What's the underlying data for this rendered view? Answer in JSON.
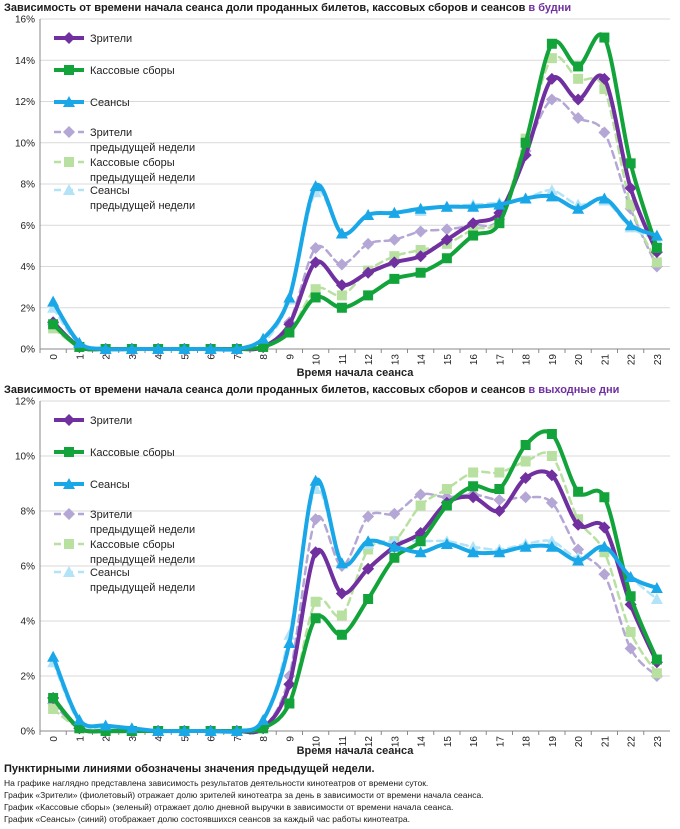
{
  "charts_text": [
    {
      "title_main": "Зависимость от времени начала сеанса доли проданных билетов, кассовых сборов и сеансов ",
      "title_highlight": "в будни"
    },
    {
      "title_main": "Зависимость от времени начала сеанса доли проданных билетов, кассовых сборов и сеансов ",
      "title_highlight": "в выходные дни"
    }
  ],
  "notes": {
    "heading": "Пунктирными линиями обозначены значения предыдущей недели.",
    "lines": [
      "На графике наглядно представлена зависимость результатов деятельности кинотеатров от времени суток.",
      "График «Зрители» (фиолетовый) отражает долю зрителей кинотеатра за день в зависимости от времени начала сеанса.",
      "График «Кассовые сборы» (зеленый) отражает долю дневной выручки в зависимости от времени начала сеанса.",
      "График «Сеансы» (синий) отображает долю состоявшихся сеансов за каждый час работы кинотеатра."
    ]
  },
  "colors": {
    "viewers": "#7030a0",
    "box": "#12a33a",
    "sessions": "#1aa7e8",
    "viewers_prev": "#b4a7d6",
    "box_prev": "#b8e0a0",
    "sessions_prev": "#b3e3f7",
    "grid": "#d9d9d9",
    "highlight": "#7030a0"
  },
  "chart_data": [
    {
      "type": "line",
      "title": "Зависимость от времени начала сеанса доли проданных билетов, кассовых сборов и сеансов в будни",
      "xlabel": "Время начала сеанса",
      "ylabel": "",
      "ylim": [
        0,
        16
      ],
      "ytick_labels": [
        "0%",
        "2%",
        "4%",
        "6%",
        "8%",
        "10%",
        "12%",
        "14%",
        "16%"
      ],
      "x": [
        "0",
        "1",
        "2",
        "3",
        "4",
        "5",
        "6",
        "7",
        "8",
        "9",
        "10",
        "11",
        "12",
        "13",
        "14",
        "15",
        "16",
        "17",
        "18",
        "19",
        "20",
        "21",
        "22",
        "23"
      ],
      "legend_position": "top-left",
      "series": [
        {
          "key": "viewers_prev",
          "name": "Зрители предыдущей недели",
          "dashed": true,
          "marker": "diamond",
          "values": [
            1.2,
            0.1,
            0,
            0,
            0,
            0,
            0,
            0,
            0.1,
            1.3,
            4.9,
            4.1,
            5.1,
            5.3,
            5.7,
            5.8,
            6.0,
            6.3,
            9.6,
            12.1,
            11.2,
            10.5,
            6.8,
            4.0
          ]
        },
        {
          "key": "box_prev",
          "name": "Кассовые сборы предыдущей недели",
          "dashed": true,
          "marker": "square",
          "values": [
            1.0,
            0.1,
            0,
            0,
            0,
            0,
            0,
            0,
            0.1,
            0.8,
            2.9,
            2.6,
            3.8,
            4.5,
            4.8,
            5.1,
            5.8,
            6.3,
            10.2,
            14.1,
            13.1,
            12.6,
            7.0,
            4.2
          ]
        },
        {
          "key": "sessions_prev",
          "name": "Сеансы предыдущей недели",
          "dashed": true,
          "marker": "triangle",
          "values": [
            2.0,
            0.2,
            0,
            0,
            0,
            0,
            0,
            0,
            0.3,
            2.4,
            7.6,
            5.6,
            6.5,
            6.6,
            6.7,
            6.9,
            7.0,
            7.1,
            7.3,
            7.7,
            7.0,
            7.2,
            5.9,
            5.3
          ]
        },
        {
          "key": "viewers",
          "name": "Зрители",
          "dashed": false,
          "marker": "diamond",
          "values": [
            1.3,
            0.1,
            0,
            0,
            0,
            0,
            0,
            0,
            0.1,
            1.2,
            4.2,
            3.1,
            3.7,
            4.2,
            4.5,
            5.3,
            6.1,
            6.6,
            9.4,
            13.1,
            12.1,
            13.1,
            7.8,
            4.7
          ]
        },
        {
          "key": "box",
          "name": "Кассовые сборы",
          "dashed": false,
          "marker": "square",
          "values": [
            1.2,
            0.1,
            0,
            0,
            0,
            0,
            0,
            0,
            0.1,
            0.8,
            2.5,
            2.0,
            2.6,
            3.4,
            3.7,
            4.4,
            5.5,
            6.1,
            10.0,
            14.8,
            13.7,
            15.1,
            9.0,
            4.9
          ]
        },
        {
          "key": "sessions",
          "name": "Сеансы",
          "dashed": false,
          "marker": "triangle",
          "values": [
            2.3,
            0.3,
            0,
            0,
            0,
            0,
            0,
            0,
            0.5,
            2.5,
            7.9,
            5.6,
            6.5,
            6.6,
            6.8,
            6.9,
            6.9,
            7.0,
            7.3,
            7.4,
            6.8,
            7.3,
            6.0,
            5.5
          ]
        }
      ]
    },
    {
      "type": "line",
      "title": "Зависимость от времени начала сеанса доли проданных билетов, кассовых сборов и сеансов в выходные дни",
      "xlabel": "Время начала сеанса",
      "ylabel": "",
      "ylim": [
        0,
        12
      ],
      "ytick_labels": [
        "0%",
        "2%",
        "4%",
        "6%",
        "8%",
        "10%",
        "12%"
      ],
      "x": [
        "0",
        "1",
        "2",
        "3",
        "4",
        "5",
        "6",
        "7",
        "8",
        "9",
        "10",
        "11",
        "12",
        "13",
        "14",
        "15",
        "16",
        "17",
        "18",
        "19",
        "20",
        "21",
        "22",
        "23"
      ],
      "legend_position": "top-left",
      "series": [
        {
          "key": "viewers_prev",
          "name": "Зрители предыдущей недели",
          "dashed": true,
          "marker": "diamond",
          "values": [
            1.0,
            0.1,
            0,
            0,
            0,
            0,
            0,
            0,
            0.1,
            2.0,
            7.7,
            6.0,
            7.8,
            7.9,
            8.6,
            8.5,
            8.6,
            8.4,
            8.5,
            8.3,
            6.6,
            5.7,
            3.0,
            2.0
          ]
        },
        {
          "key": "box_prev",
          "name": "Кассовые сборы предыдущей недели",
          "dashed": true,
          "marker": "square",
          "values": [
            0.8,
            0.1,
            0,
            0,
            0,
            0,
            0,
            0,
            0.1,
            1.0,
            4.7,
            4.2,
            6.6,
            6.9,
            8.2,
            8.8,
            9.4,
            9.4,
            9.8,
            10.0,
            7.7,
            6.5,
            3.6,
            2.1
          ]
        },
        {
          "key": "sessions_prev",
          "name": "Сеансы предыдущей недели",
          "dashed": true,
          "marker": "triangle",
          "values": [
            2.5,
            0.3,
            0.1,
            0,
            0,
            0,
            0,
            0,
            0.3,
            3.5,
            8.8,
            6.1,
            6.8,
            6.9,
            6.9,
            6.9,
            6.7,
            6.6,
            6.8,
            6.9,
            6.3,
            6.7,
            5.6,
            4.8
          ]
        },
        {
          "key": "viewers",
          "name": "Зрители",
          "dashed": false,
          "marker": "diamond",
          "values": [
            1.2,
            0.1,
            0,
            0,
            0,
            0,
            0,
            0,
            0.1,
            1.7,
            6.5,
            5.0,
            5.9,
            6.7,
            7.2,
            8.3,
            8.5,
            8.0,
            9.2,
            9.3,
            7.5,
            7.4,
            4.6,
            2.5
          ]
        },
        {
          "key": "box",
          "name": "Кассовые сборы",
          "dashed": false,
          "marker": "square",
          "values": [
            1.2,
            0.1,
            0,
            0,
            0,
            0,
            0,
            0,
            0.1,
            1.0,
            4.1,
            3.5,
            4.8,
            6.3,
            6.9,
            8.2,
            8.9,
            8.8,
            10.4,
            10.8,
            8.7,
            8.5,
            4.9,
            2.6
          ]
        },
        {
          "key": "sessions",
          "name": "Сеансы",
          "dashed": false,
          "marker": "triangle",
          "values": [
            2.7,
            0.4,
            0.2,
            0.1,
            0,
            0,
            0,
            0,
            0.4,
            3.2,
            9.1,
            6.1,
            6.9,
            6.7,
            6.5,
            6.8,
            6.5,
            6.5,
            6.7,
            6.7,
            6.2,
            6.7,
            5.6,
            5.2
          ]
        }
      ]
    }
  ]
}
